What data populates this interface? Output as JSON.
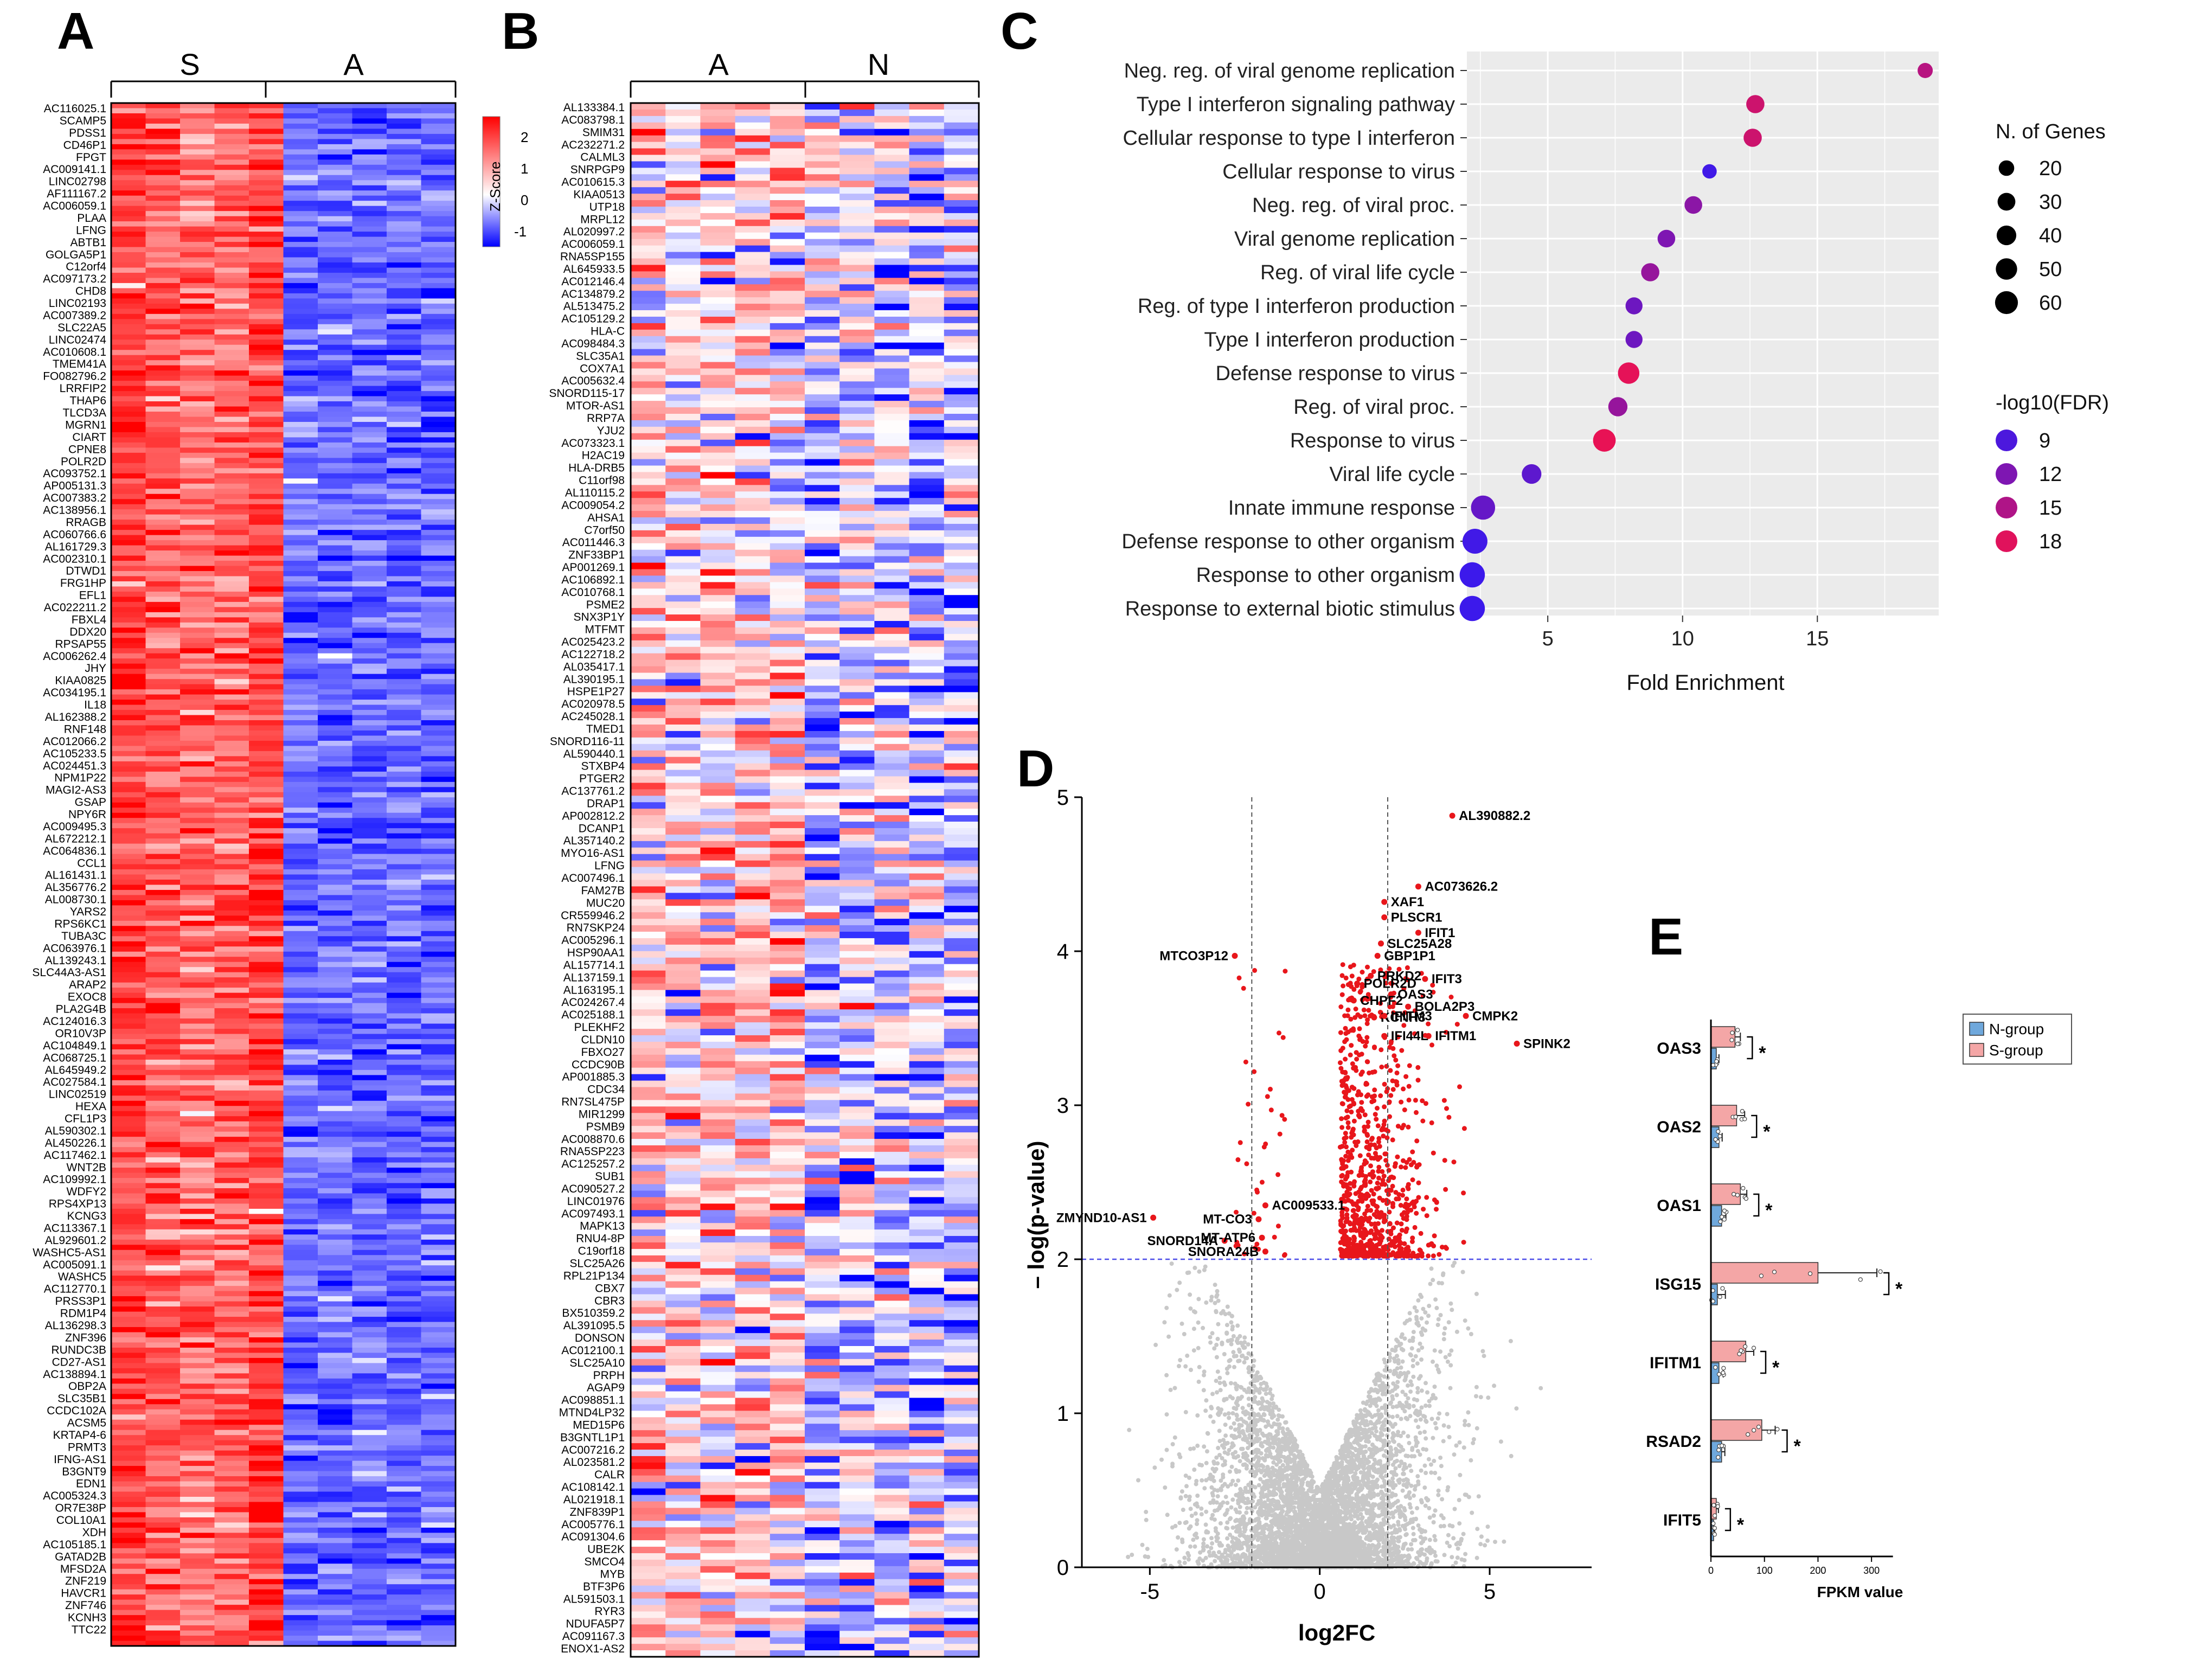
{
  "panel_labels": [
    "A",
    "B",
    "C",
    "D",
    "E"
  ],
  "chart_data": [
    {
      "type": "heatmap",
      "panel": "A",
      "groups": [
        "S",
        "A"
      ],
      "columns_per_group": 5,
      "genes": [
        "AC116025.1",
        "SCAMP5",
        "PDSS1",
        "CD46P1",
        "FPGT",
        "AC009141.1",
        "LINC02798",
        "AF111167.2",
        "AC006059.1",
        "PLAA",
        "LFNG",
        "ABTB1",
        "GOLGA5P1",
        "C12orf4",
        "AC097173.2",
        "CHD8",
        "LINC02193",
        "AC007389.2",
        "SLC22A5",
        "LINC02474",
        "AC010608.1",
        "TMEM41A",
        "FO082796.2",
        "LRRFIP2",
        "THAP6",
        "TLCD3A",
        "MGRN1",
        "CIART",
        "CPNE8",
        "POLR2D",
        "AC093752.1",
        "AP005131.3",
        "AC007383.2",
        "AC138956.1",
        "RRAGB",
        "AC060766.6",
        "AL161729.3",
        "AC002310.1",
        "DTWD1",
        "FRG1HP",
        "EFL1",
        "AC022211.2",
        "FBXL4",
        "DDX20",
        "RPSAP55",
        "AC006262.4",
        "JHY",
        "KIAA0825",
        "AC034195.1",
        "IL18",
        "AL162388.2",
        "RNF148",
        "AC012066.2",
        "AC105233.5",
        "AC024451.3",
        "NPM1P22",
        "MAGI2-AS3",
        "GSAP",
        "NPY6R",
        "AC009495.3",
        "AL672212.1",
        "AC064836.1",
        "CCL1",
        "AL161431.1",
        "AL356776.2",
        "AL008730.1",
        "YARS2",
        "RPS6KC1",
        "TUBA3C",
        "AC063976.1",
        "AL139243.1",
        "SLC44A3-AS1",
        "ARAP2",
        "EXOC8",
        "PLA2G4B",
        "AC124016.3",
        "OR10V3P",
        "AC104849.1",
        "AC068725.1",
        "AL645949.2",
        "AC027584.1",
        "LINC02519",
        "HEXA",
        "CFL1P3",
        "AL590302.1",
        "AL450226.1",
        "AC117462.1",
        "WNT2B",
        "AC109992.1",
        "WDFY2",
        "RPS4XP13",
        "KCNG3",
        "AC113367.1",
        "AL929601.2",
        "WASHC5-AS1",
        "AC005091.1",
        "WASHC5",
        "AC112770.1",
        "PRSS3P1",
        "RDM1P4",
        "AL136298.3",
        "ZNF396",
        "RUNDC3B",
        "CD27-AS1",
        "AC138894.1",
        "OBP2A",
        "SLC35B1",
        "CCDC102A",
        "ACSM5",
        "KRTAP4-6",
        "PRMT3",
        "IFNG-AS1",
        "B3GNT9",
        "EDN1",
        "AC005324.3",
        "OR7E38P",
        "COL10A1",
        "XDH",
        "AC105185.1",
        "GATAD2B",
        "MFSD2A",
        "ZNF219",
        "HAVCR1",
        "ZNF746",
        "KCNH3",
        "TTC22"
      ]
    },
    {
      "type": "heatmap",
      "panel": "B",
      "groups": [
        "A",
        "N"
      ],
      "columns_per_group": 5,
      "colorbar": {
        "title": "Z-Score",
        "ticks": [
          2,
          1,
          0,
          -1
        ],
        "range": [
          -1.5,
          2.3
        ]
      },
      "genes": [
        "AL133384.1",
        "AC083798.1",
        "SMIM31",
        "AC232271.2",
        "CALML3",
        "SNRPGP9",
        "AC010615.3",
        "KIAA0513",
        "UTP18",
        "MRPL12",
        "AL020997.2",
        "AC006059.1",
        "RNA5SP155",
        "AL645933.5",
        "AC012146.4",
        "AC134879.2",
        "AL513475.2",
        "AC105129.2",
        "HLA-C",
        "AC098484.3",
        "SLC35A1",
        "COX7A1",
        "AC005632.4",
        "SNORD115-17",
        "MTOR-AS1",
        "RRP7A",
        "YJU2",
        "AC073323.1",
        "H2AC19",
        "HLA-DRB5",
        "C11orf98",
        "AL110115.2",
        "AC009054.2",
        "AHSA1",
        "C7orf50",
        "AC011446.3",
        "ZNF33BP1",
        "AP001269.1",
        "AC106892.1",
        "AC010768.1",
        "PSME2",
        "SNX3P1Y",
        "MTFMT",
        "AC025423.2",
        "AC122718.2",
        "AL035417.1",
        "AL390195.1",
        "HSPE1P27",
        "AC020978.5",
        "AC245028.1",
        "TMED1",
        "SNORD116-11",
        "AL590440.1",
        "STXBP4",
        "PTGER2",
        "AC137761.2",
        "DRAP1",
        "AP002812.2",
        "DCANP1",
        "AL357140.2",
        "MYO16-AS1",
        "LFNG",
        "AC007496.1",
        "FAM27B",
        "MUC20",
        "CR559946.2",
        "RN7SKP24",
        "AC005296.1",
        "HSP90AA1",
        "AL157714.1",
        "AL137159.1",
        "AL163195.1",
        "AC024267.4",
        "AC025188.1",
        "PLEKHF2",
        "CLDN10",
        "FBXO27",
        "CCDC90B",
        "AP001885.3",
        "CDC34",
        "RN7SL475P",
        "MIR1299",
        "PSMB9",
        "AC008870.6",
        "RNA5SP223",
        "AC125257.2",
        "SUB1",
        "AC090527.2",
        "LINC01976",
        "AC097493.1",
        "MAPK13",
        "RNU4-8P",
        "C19orf18",
        "SLC25A26",
        "RPL21P134",
        "CBX7",
        "CBR3",
        "BX510359.2",
        "AL391095.5",
        "DONSON",
        "AC012100.1",
        "SLC25A10",
        "PRPH",
        "AGAP9",
        "AC098851.1",
        "MTND4LP32",
        "MED15P6",
        "B3GNTL1P1",
        "AC007216.2",
        "AL023581.2",
        "CALR",
        "AC108142.1",
        "AL021918.1",
        "ZNF839P1",
        "AC005776.1",
        "AC091304.6",
        "UBE2K",
        "SMCO4",
        "MYB",
        "BTF3P6",
        "AL591503.1",
        "RYR3",
        "NDUFA5P7",
        "AC091167.3",
        "ENOX1-AS2"
      ]
    },
    {
      "type": "scatter",
      "panel": "C",
      "xlabel": "Fold Enrichment",
      "xlim": [
        2,
        19.5
      ],
      "xticks": [
        5,
        10,
        15
      ],
      "size_legend": {
        "title": "N. of Genes",
        "values": [
          20,
          30,
          40,
          50,
          60
        ]
      },
      "color_legend": {
        "title": "-log10(FDR)",
        "values": [
          9,
          12,
          15,
          18
        ]
      },
      "terms": [
        {
          "term": "Neg. reg. of viral genome replication",
          "fold": 19.0,
          "genes": 14,
          "fdr": 15.5
        },
        {
          "term": "Type I interferon signaling pathway",
          "fold": 12.7,
          "genes": 24,
          "fdr": 16.8
        },
        {
          "term": "Cellular response to type I interferon",
          "fold": 12.6,
          "genes": 24,
          "fdr": 16.8
        },
        {
          "term": "Cellular response to virus",
          "fold": 11.0,
          "genes": 12,
          "fdr": 8.3
        },
        {
          "term": "Neg. reg. of viral proc.",
          "fold": 10.4,
          "genes": 22,
          "fdr": 12.8
        },
        {
          "term": "Viral genome replication",
          "fold": 9.4,
          "genes": 22,
          "fdr": 12.0
        },
        {
          "term": "Reg. of viral life cycle",
          "fold": 8.8,
          "genes": 24,
          "fdr": 13.5
        },
        {
          "term": "Reg. of type I interferon production",
          "fold": 8.2,
          "genes": 20,
          "fdr": 11.0
        },
        {
          "term": "Type I interferon production",
          "fold": 8.2,
          "genes": 20,
          "fdr": 11.0
        },
        {
          "term": "Defense response to virus",
          "fold": 8.0,
          "genes": 38,
          "fdr": 18.3
        },
        {
          "term": "Reg. of viral proc.",
          "fold": 7.6,
          "genes": 28,
          "fdr": 13.5
        },
        {
          "term": "Response to virus",
          "fold": 7.1,
          "genes": 44,
          "fdr": 18.5
        },
        {
          "term": "Viral life cycle",
          "fold": 4.4,
          "genes": 30,
          "fdr": 10.0
        },
        {
          "term": "Innate immune response",
          "fold": 2.6,
          "genes": 52,
          "fdr": 10.5
        },
        {
          "term": "Defense response to other organism",
          "fold": 2.3,
          "genes": 56,
          "fdr": 8.3
        },
        {
          "term": "Response to other organism",
          "fold": 2.2,
          "genes": 58,
          "fdr": 8.0
        },
        {
          "term": "Response to external biotic stimulus",
          "fold": 2.2,
          "genes": 58,
          "fdr": 8.0
        }
      ]
    },
    {
      "type": "scatter",
      "panel": "D",
      "xlabel": "log2FC",
      "ylabel": "– log(p-value)",
      "xlim": [
        -7,
        8
      ],
      "ylim": [
        0,
        5
      ],
      "xticks": [
        -5,
        0,
        5
      ],
      "yticks": [
        0,
        1,
        2,
        3,
        4,
        5
      ],
      "fc_threshold": 2,
      "p_threshold": 2,
      "labeled_points": [
        {
          "gene": "AL390882.2",
          "x": 3.9,
          "y": 4.88
        },
        {
          "gene": "AC073626.2",
          "x": 2.9,
          "y": 4.42
        },
        {
          "gene": "XAF1",
          "x": 1.9,
          "y": 4.32
        },
        {
          "gene": "PLSCR1",
          "x": 1.9,
          "y": 4.22
        },
        {
          "gene": "IFIT1",
          "x": 2.9,
          "y": 4.12
        },
        {
          "gene": "SLC25A28",
          "x": 1.8,
          "y": 4.05
        },
        {
          "gene": "GBP1P1",
          "x": 1.7,
          "y": 3.97
        },
        {
          "gene": "MTCO3P12",
          "x": -2.5,
          "y": 3.97
        },
        {
          "gene": "PRKD2",
          "x": 1.5,
          "y": 3.84
        },
        {
          "gene": "IFIT3",
          "x": 3.1,
          "y": 3.82
        },
        {
          "gene": "POLR2D",
          "x": 1.1,
          "y": 3.79
        },
        {
          "gene": "OAS3",
          "x": 2.1,
          "y": 3.72
        },
        {
          "gene": "CHPF2",
          "x": 1.0,
          "y": 3.68
        },
        {
          "gene": "BOLA2P3",
          "x": 2.6,
          "y": 3.64
        },
        {
          "gene": "KCNH3",
          "x": 1.6,
          "y": 3.57
        },
        {
          "gene": "IFITM3",
          "x": 1.9,
          "y": 3.58
        },
        {
          "gene": "CMPK2",
          "x": 4.3,
          "y": 3.58
        },
        {
          "gene": "IFI44L",
          "x": 1.9,
          "y": 3.45
        },
        {
          "gene": "IFITM1",
          "x": 3.2,
          "y": 3.45
        },
        {
          "gene": "SPINK2",
          "x": 5.8,
          "y": 3.4
        },
        {
          "gene": "ZMYND10-AS1",
          "x": -4.9,
          "y": 2.27
        },
        {
          "gene": "AC009533.1",
          "x": -1.6,
          "y": 2.35
        },
        {
          "gene": "MT-CO3",
          "x": -1.8,
          "y": 2.26
        },
        {
          "gene": "SNORD14A",
          "x": -2.8,
          "y": 2.12
        },
        {
          "gene": "MT-ATP6",
          "x": -1.7,
          "y": 2.14
        },
        {
          "gene": "SNORA24B",
          "x": -1.6,
          "y": 2.05
        }
      ]
    },
    {
      "type": "bar",
      "panel": "E",
      "orientation": "horizontal",
      "xlabel": "FPKM value",
      "xlim": [
        0,
        340
      ],
      "xticks": [
        0,
        100,
        200,
        300
      ],
      "categories": [
        "OAS3",
        "OAS2",
        "OAS1",
        "ISG15",
        "IFITM1",
        "RSAD2",
        "IFIT5"
      ],
      "series": [
        {
          "name": "N-group",
          "color": "#6fa8dc",
          "values": [
            10,
            15,
            20,
            12,
            15,
            20,
            5
          ],
          "errors": [
            5,
            6,
            8,
            15,
            8,
            6,
            2
          ]
        },
        {
          "name": "S-group",
          "color": "#f4a6a6",
          "values": [
            45,
            48,
            55,
            200,
            65,
            95,
            10
          ],
          "errors": [
            10,
            15,
            12,
            110,
            15,
            25,
            4
          ]
        }
      ],
      "significance": [
        "*",
        "*",
        "*",
        "*",
        "*",
        "*",
        "*"
      ]
    }
  ]
}
